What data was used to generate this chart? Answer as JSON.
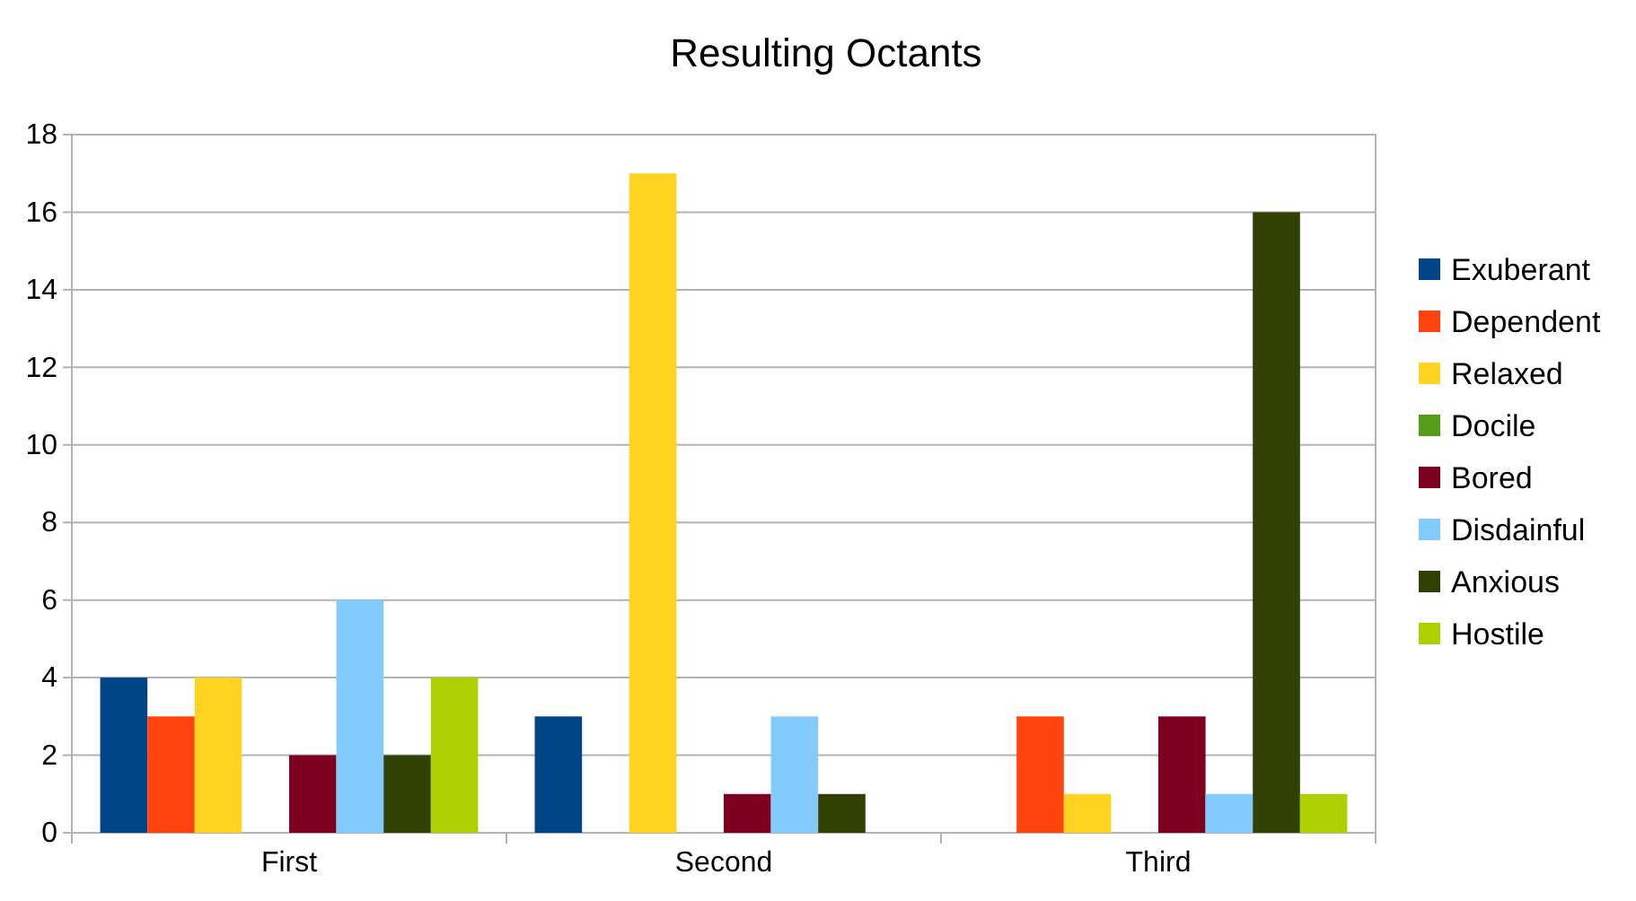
{
  "chart_data": {
    "type": "bar",
    "title": "Resulting Octants",
    "categories": [
      "First",
      "Second",
      "Third"
    ],
    "series": [
      {
        "name": "Exuberant",
        "color": "#004586",
        "values": [
          4,
          3,
          0
        ]
      },
      {
        "name": "Dependent",
        "color": "#ff420e",
        "values": [
          3,
          0,
          3
        ]
      },
      {
        "name": "Relaxed",
        "color": "#ffd320",
        "values": [
          4,
          17,
          1
        ]
      },
      {
        "name": "Docile",
        "color": "#579d1c",
        "values": [
          0,
          0,
          0
        ]
      },
      {
        "name": "Bored",
        "color": "#7e0021",
        "values": [
          2,
          1,
          3
        ]
      },
      {
        "name": "Disdainful",
        "color": "#83caff",
        "values": [
          6,
          3,
          1
        ]
      },
      {
        "name": "Anxious",
        "color": "#314004",
        "values": [
          2,
          1,
          16
        ]
      },
      {
        "name": "Hostile",
        "color": "#aecf00",
        "values": [
          4,
          0,
          1
        ]
      }
    ],
    "ylim": [
      0,
      18
    ],
    "yticks": [
      0,
      2,
      4,
      6,
      8,
      10,
      12,
      14,
      16,
      18
    ],
    "grid": "y",
    "legend": "right"
  }
}
